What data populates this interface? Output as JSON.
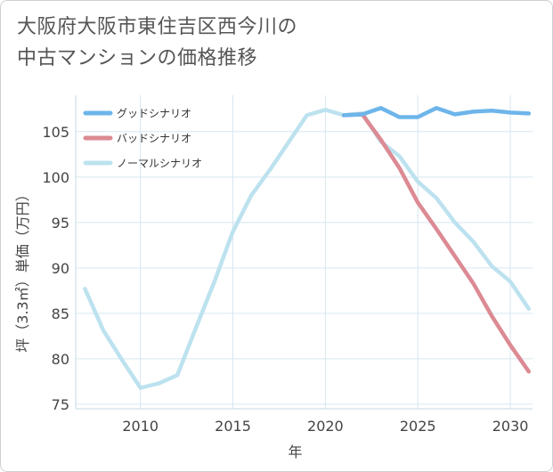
{
  "title": "大阪府大阪市東住吉区西今川の\n中古マンションの価格推移",
  "chart_data": {
    "type": "line",
    "xlabel": "年",
    "ylabel": "坪（3.3㎡）単価（万円）",
    "xlim": [
      2006.5,
      2031.2
    ],
    "ylim": [
      74.5,
      109
    ],
    "x_ticks": [
      "2010",
      "2015",
      "2020",
      "2025",
      "2030"
    ],
    "y_ticks": [
      "75",
      "80",
      "85",
      "90",
      "95",
      "100",
      "105"
    ],
    "grid": true,
    "legend_position": "top-left",
    "series": [
      {
        "name": "グッドシナリオ",
        "color": "#6db5ea",
        "x": [
          2021,
          2022,
          2023,
          2024,
          2025,
          2026,
          2027,
          2028,
          2029,
          2030,
          2031
        ],
        "values": [
          106.8,
          106.9,
          107.6,
          106.6,
          106.6,
          107.6,
          106.9,
          107.2,
          107.3,
          107.1,
          107.0
        ]
      },
      {
        "name": "バッドシナリオ",
        "color": "#dc8a93",
        "x": [
          2021,
          2022,
          2023,
          2024,
          2025,
          2026,
          2027,
          2028,
          2029,
          2030,
          2031
        ],
        "values": [
          106.8,
          106.9,
          104.1,
          101.0,
          97.2,
          94.3,
          91.3,
          88.3,
          84.7,
          81.5,
          78.6
        ]
      },
      {
        "name": "ノーマルシナリオ",
        "color": "#bde2ef",
        "x": [
          2007,
          2008,
          2009,
          2010,
          2011,
          2012,
          2013,
          2014,
          2015,
          2016,
          2017,
          2018,
          2019,
          2020,
          2021,
          2022,
          2023,
          2024,
          2025,
          2026,
          2027,
          2028,
          2029,
          2030,
          2031
        ],
        "values": [
          87.7,
          83.1,
          79.9,
          76.8,
          77.3,
          78.2,
          83.4,
          88.5,
          94.0,
          98.0,
          100.8,
          103.8,
          106.8,
          107.4,
          106.8,
          107.0,
          103.9,
          102.3,
          99.5,
          97.7,
          95.0,
          92.9,
          90.2,
          88.5,
          85.5
        ]
      }
    ]
  }
}
